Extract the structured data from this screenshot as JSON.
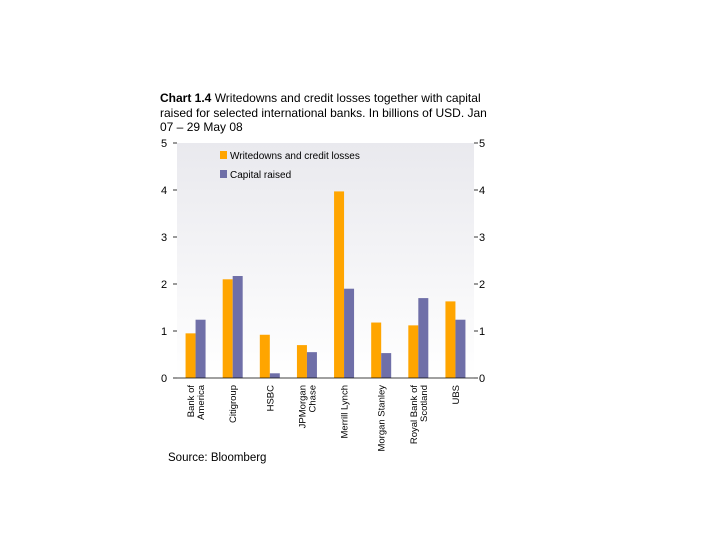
{
  "title": {
    "prefix": "Chart 1.4",
    "text": " Writedowns and credit losses together with capital raised for selected international banks. In billions of USD. Jan 07 – 29 May 08"
  },
  "source": "Source: Bloomberg",
  "colors": {
    "writedowns": "#FFA500",
    "capital": "#6F6FA8",
    "plot_top": "#E9E9EE",
    "plot_bottom": "#FFFFFF"
  },
  "chart_data": {
    "type": "bar",
    "categories": [
      [
        "Bank of",
        "America"
      ],
      [
        "Citigroup"
      ],
      [
        "HSBC"
      ],
      [
        "JPMorgan",
        "Chase"
      ],
      [
        "Merrill Lynch"
      ],
      [
        "Morgan Stanley"
      ],
      [
        "Royal Bank of",
        "Scotland"
      ],
      [
        "UBS"
      ]
    ],
    "series": [
      {
        "name": "Writedowns and credit losses",
        "values": [
          0.95,
          2.1,
          0.92,
          0.7,
          3.97,
          1.18,
          1.12,
          1.63
        ]
      },
      {
        "name": "Capital raised",
        "values": [
          1.24,
          2.17,
          0.1,
          0.55,
          1.9,
          0.53,
          1.7,
          1.24
        ]
      }
    ],
    "ylim": [
      0,
      5
    ],
    "yticks": [
      0,
      1,
      2,
      3,
      4,
      5
    ],
    "y_axis_both_sides": true,
    "legend_position": "top-center"
  }
}
